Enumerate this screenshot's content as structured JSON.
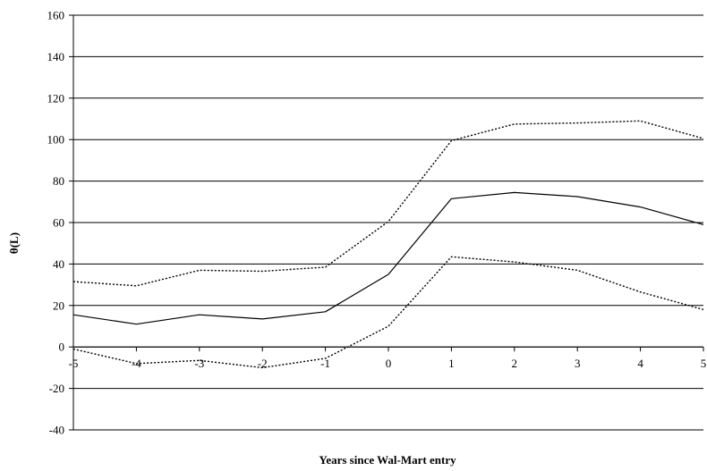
{
  "chart_data": {
    "type": "line",
    "xlabel": "Years since Wal-Mart entry",
    "ylabel": "θ(L)",
    "x": [
      -5,
      -4,
      -3,
      -2,
      -1,
      0,
      1,
      2,
      3,
      4,
      5
    ],
    "ylim": [
      -40,
      160
    ],
    "yticks": [
      -40,
      -20,
      0,
      20,
      40,
      60,
      80,
      100,
      120,
      140,
      160
    ],
    "grid": "horizontal",
    "legend": "none",
    "series": [
      {
        "style": "solid",
        "color": "#000000",
        "values": [
          15.5,
          11,
          15.5,
          13.5,
          17,
          35,
          71.5,
          74.5,
          72.5,
          67.5,
          59
        ]
      },
      {
        "style": "dotted",
        "color": "#000000",
        "values": [
          31.5,
          29.5,
          37,
          36.5,
          38.5,
          60.5,
          99.5,
          107.5,
          108,
          109,
          100.5
        ]
      },
      {
        "style": "dotted",
        "color": "#000000",
        "values": [
          -1,
          -8,
          -6.5,
          -10,
          -5.5,
          10,
          43.5,
          41,
          37,
          26.5,
          18
        ]
      }
    ]
  }
}
